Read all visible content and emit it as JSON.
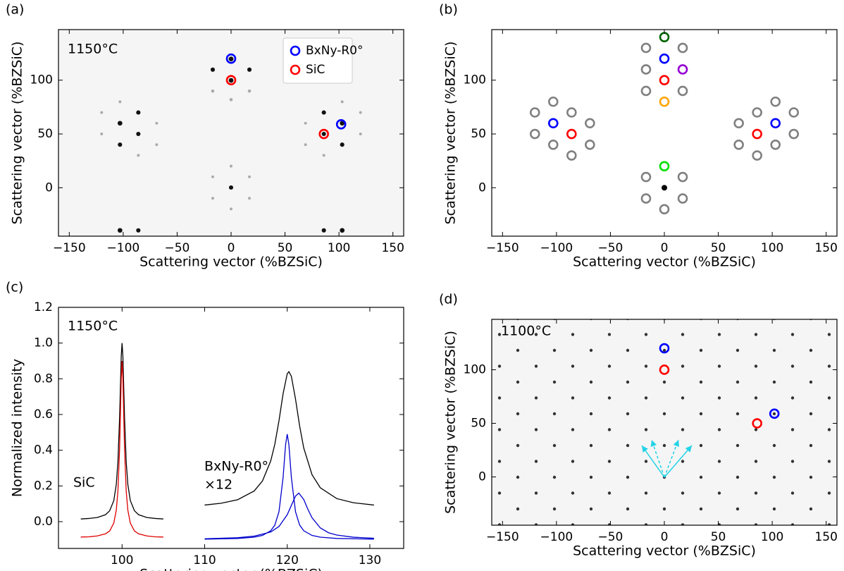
{
  "chart_data": [
    {
      "type": "scatter",
      "panel_label": "(a)",
      "xlabel": "Scattering vector (%BZSiC)",
      "ylabel": "Scattering vector (%BZSiC)",
      "xlim": [
        -160,
        160
      ],
      "ylim": [
        -45,
        147
      ],
      "xticks": [
        {
          "value": -150,
          "label": "−150"
        },
        {
          "value": -100,
          "label": "−100"
        },
        {
          "value": -50,
          "label": "−50"
        },
        0,
        50,
        100,
        150
      ],
      "yticks": [
        0,
        50,
        100
      ],
      "annotations": [
        "1150°C"
      ],
      "legend": "upper right",
      "series": [
        {
          "name": "BxNy-R0°",
          "color": "#0000ff",
          "x": [
            0,
            102
          ],
          "values": [
            120,
            59
          ]
        },
        {
          "name": "SiC",
          "color": "#ff0000",
          "x": [
            0,
            86
          ],
          "values": [
            100,
            50
          ]
        }
      ]
    },
    {
      "type": "scatter",
      "panel_label": "(b)",
      "xlabel": "Scattering vector (%BZSiC)",
      "ylabel": "Scattering vector (%BZSiC)",
      "xlim": [
        -160,
        160
      ],
      "ylim": [
        -45,
        147
      ],
      "xticks": [
        {
          "value": -150,
          "label": "−150"
        },
        {
          "value": -100,
          "label": "−100"
        },
        {
          "value": -50,
          "label": "−50"
        },
        0,
        50,
        100,
        150
      ],
      "yticks": [
        0,
        50,
        100
      ],
      "series": [
        {
          "color": "#808080",
          "x": [
            -17,
            17,
            -17,
            -17,
            17,
            -103,
            -120,
            -86,
            -120,
            -69,
            -103,
            -69,
            -86,
            103,
            120,
            86,
            120,
            69,
            103,
            69,
            86,
            17,
            -17,
            -17,
            17,
            0
          ],
          "values": [
            130,
            130,
            110,
            90,
            90,
            80,
            70,
            70,
            50,
            60,
            40,
            40,
            30,
            80,
            70,
            70,
            50,
            60,
            40,
            40,
            30,
            10,
            10,
            -10,
            -10,
            -20
          ]
        },
        {
          "color": "#0000ff",
          "x": [
            0,
            -103,
            103
          ],
          "values": [
            120,
            60,
            60
          ]
        },
        {
          "color": "#ff0000",
          "x": [
            0,
            -86,
            86
          ],
          "values": [
            100,
            50,
            50
          ]
        },
        {
          "color": "#006400",
          "x": [
            0
          ],
          "values": [
            140
          ]
        },
        {
          "color": "#9400d3",
          "x": [
            17
          ],
          "values": [
            110
          ]
        },
        {
          "color": "#ffa500",
          "x": [
            0
          ],
          "values": [
            80
          ]
        },
        {
          "color": "#00e000",
          "x": [
            0
          ],
          "values": [
            20
          ]
        },
        {
          "color": "#000000",
          "x": [
            0
          ],
          "values": [
            0
          ],
          "filled": true
        }
      ]
    },
    {
      "type": "line",
      "panel_label": "(c)",
      "xlabel": "Scattering vector (%BZSiC)",
      "ylabel": "Normalized intensity",
      "xlim": [
        92.3,
        134.1
      ],
      "ylim": [
        -0.15,
        1.2
      ],
      "xticks": [
        100,
        110,
        120,
        130
      ],
      "yticks": [
        {
          "value": 0,
          "label": "0.0"
        },
        {
          "value": 0.2,
          "label": "0.2"
        },
        {
          "value": 0.4,
          "label": "0.4"
        },
        {
          "value": 0.6,
          "label": "0.6"
        },
        {
          "value": 0.8,
          "label": "0.8"
        },
        {
          "value": 1.0,
          "label": "1.0"
        },
        {
          "value": 1.2,
          "label": "1.2"
        }
      ],
      "annotations": [
        "1150°C",
        "SiC",
        "BxNy-R0°",
        "×12"
      ],
      "series": [
        {
          "color": "#000000",
          "x": [
            95,
            96,
            97,
            98,
            98.5,
            99,
            99.3,
            99.5,
            99.7,
            99.8,
            99.9,
            100,
            100.1,
            100.2,
            100.3,
            100.5,
            100.7,
            101,
            101.5,
            102,
            103,
            104,
            105
          ],
          "values": [
            0.015,
            0.018,
            0.023,
            0.039,
            0.061,
            0.118,
            0.208,
            0.336,
            0.581,
            0.756,
            0.925,
            1.0,
            0.925,
            0.756,
            0.581,
            0.336,
            0.208,
            0.118,
            0.061,
            0.039,
            0.023,
            0.018,
            0.015
          ]
        },
        {
          "color": "#e00000",
          "x": [
            95,
            96,
            97,
            98,
            98.5,
            99,
            99.3,
            99.5,
            99.7,
            99.8,
            99.9,
            100,
            100.1,
            100.2,
            100.3,
            100.5,
            100.7,
            101,
            101.5,
            102,
            103,
            104,
            105
          ],
          "values": [
            -0.086,
            -0.085,
            -0.08,
            -0.068,
            -0.052,
            -0.008,
            0.064,
            0.172,
            0.405,
            0.596,
            0.801,
            0.9,
            0.801,
            0.596,
            0.405,
            0.172,
            0.064,
            -0.008,
            -0.052,
            -0.068,
            -0.08,
            -0.085,
            -0.086
          ]
        },
        {
          "color": "#000000",
          "x": [
            110,
            112,
            114,
            116,
            117,
            118,
            118.5,
            119,
            119.5,
            120,
            120.2,
            120.5,
            121,
            121.5,
            122,
            123,
            124,
            126,
            128,
            130.5
          ],
          "values": [
            0.093,
            0.103,
            0.123,
            0.172,
            0.228,
            0.34,
            0.434,
            0.565,
            0.717,
            0.828,
            0.84,
            0.814,
            0.687,
            0.536,
            0.412,
            0.263,
            0.19,
            0.129,
            0.106,
            0.093
          ]
        },
        {
          "color": "#0000cc",
          "x": [
            110,
            114,
            116,
            117,
            118,
            118.5,
            119,
            119.5,
            119.8,
            120,
            120.2,
            120.5,
            121,
            121.5,
            122,
            123,
            124,
            126,
            130.5
          ],
          "values": [
            -0.098,
            -0.094,
            -0.087,
            -0.077,
            -0.051,
            -0.019,
            0.056,
            0.248,
            0.431,
            0.49,
            0.431,
            0.248,
            0.056,
            -0.019,
            -0.051,
            -0.077,
            -0.087,
            -0.094,
            -0.098
          ]
        },
        {
          "color": "#0000cc",
          "x": [
            110,
            114,
            116,
            118,
            119,
            120,
            120.5,
            121,
            121.4,
            122,
            122.5,
            123,
            124,
            125,
            126,
            128,
            130.5
          ],
          "values": [
            -0.096,
            -0.09,
            -0.081,
            -0.058,
            -0.027,
            0.039,
            0.091,
            0.143,
            0.16,
            0.124,
            0.069,
            0.022,
            -0.035,
            -0.062,
            -0.075,
            -0.087,
            -0.093
          ]
        }
      ]
    },
    {
      "type": "scatter",
      "panel_label": "(d)",
      "xlabel": "Scattering vector (%BZSiC)",
      "ylabel": "Scattering vector (%BZSiC)",
      "xlim": [
        -160,
        160
      ],
      "ylim": [
        -45,
        147
      ],
      "xticks": [
        {
          "value": -150,
          "label": "−150"
        },
        {
          "value": -100,
          "label": "−100"
        },
        {
          "value": -50,
          "label": "−50"
        },
        0,
        50,
        100,
        150
      ],
      "yticks": [
        0,
        50,
        100
      ],
      "annotations": [
        "1100°C"
      ],
      "series": [
        {
          "color": "#0000ff",
          "x": [
            0,
            102
          ],
          "values": [
            120,
            59
          ]
        },
        {
          "color": "#ff0000",
          "x": [
            0,
            86
          ],
          "values": [
            100,
            50
          ]
        }
      ]
    }
  ]
}
